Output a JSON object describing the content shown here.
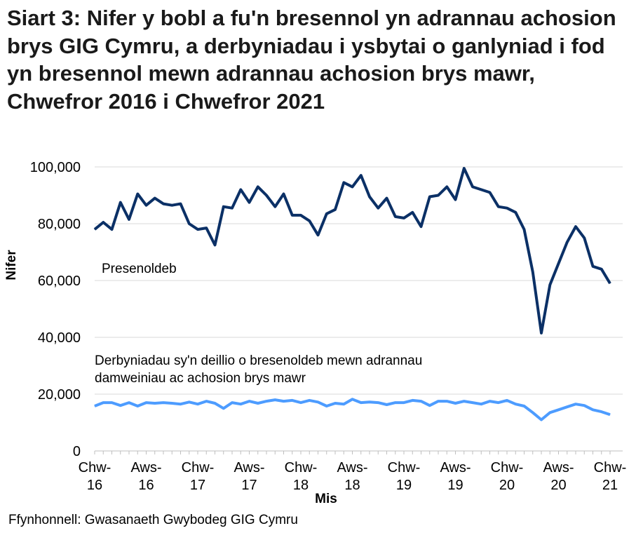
{
  "chart_data": {
    "type": "line",
    "title": "Siart 3: Nifer y bobl a fu'n bresennol yn adrannau achosion brys GIG Cymru, a derbyniadau i ysbytai o ganlyniad i fod yn bresennol mewn adrannau achosion brys mawr, Chwefror 2016 i Chwefror 2021",
    "xlabel": "Mis",
    "ylabel": "Nifer",
    "ylim": [
      0,
      100000
    ],
    "yticks": [
      "0",
      "20,000",
      "40,000",
      "60,000",
      "80,000",
      "100,000"
    ],
    "grid": true,
    "x_start": "2016-02",
    "x_end": "2021-02",
    "xtick_labels": [
      [
        "Chw-",
        "16"
      ],
      [
        "Aws-",
        "16"
      ],
      [
        "Chw-",
        "17"
      ],
      [
        "Aws-",
        "17"
      ],
      [
        "Chw-",
        "18"
      ],
      [
        "Aws-",
        "18"
      ],
      [
        "Chw-",
        "19"
      ],
      [
        "Aws-",
        "19"
      ],
      [
        "Chw-",
        "20"
      ],
      [
        "Aws-",
        "20"
      ],
      [
        "Chw-",
        "21"
      ]
    ],
    "series": [
      {
        "name": "Presenoldeb",
        "color": "#0b3066",
        "values": [
          78000,
          80500,
          78000,
          87500,
          81500,
          90500,
          86500,
          89000,
          87000,
          86500,
          87000,
          80000,
          78000,
          78500,
          72500,
          86000,
          85500,
          92000,
          87500,
          93000,
          90000,
          86000,
          90500,
          83000,
          83000,
          81000,
          76000,
          83500,
          85000,
          94500,
          93000,
          97000,
          89500,
          85500,
          89000,
          82500,
          82000,
          84000,
          79000,
          89500,
          90000,
          93000,
          88500,
          99500,
          93000,
          92000,
          91000,
          86000,
          85500,
          84000,
          78000,
          63000,
          41500,
          58500,
          66000,
          73500,
          79000,
          75000,
          65000,
          64000,
          59000
        ]
      },
      {
        "name": "Derbyniadau sy'n deillio o bresenoldeb mewn adrannau damweiniau ac achosion brys mawr",
        "name_lines": [
          "Derbyniadau sy'n deillio o bresenoldeb mewn adrannau",
          "damweiniau ac achosion brys mawr"
        ],
        "color": "#4d9cff",
        "values": [
          15800,
          17000,
          17000,
          16000,
          17000,
          15800,
          17000,
          16800,
          17000,
          16800,
          16500,
          17200,
          16500,
          17500,
          16800,
          15000,
          17000,
          16500,
          17500,
          16800,
          17500,
          18000,
          17500,
          17800,
          17000,
          17800,
          17200,
          15800,
          16800,
          16500,
          18200,
          17000,
          17200,
          17000,
          16300,
          17000,
          17000,
          17800,
          17500,
          16000,
          17500,
          17500,
          16800,
          17500,
          17000,
          16500,
          17500,
          17000,
          17800,
          16500,
          15800,
          13500,
          11000,
          13500,
          14500,
          15500,
          16500,
          16000,
          14500,
          13800,
          12800
        ]
      }
    ],
    "source": "Ffynhonnell: Gwasanaeth Gwybodeg GIG Cymru"
  }
}
